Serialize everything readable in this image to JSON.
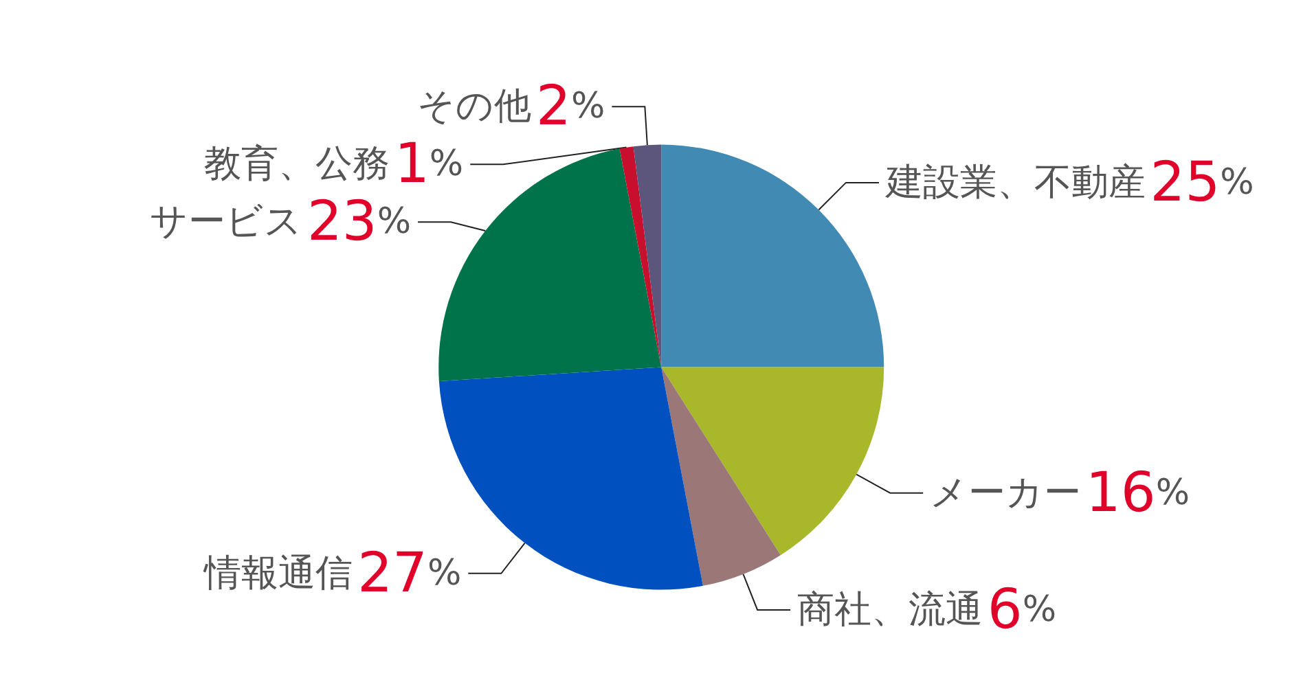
{
  "chart_data": {
    "type": "pie",
    "categories": [
      "建設業、不動産",
      "メーカー",
      "商社、流通",
      "情報通信",
      "サービス",
      "教育、公務",
      "その他"
    ],
    "values": [
      25,
      16,
      6,
      27,
      23,
      1,
      2
    ],
    "value_labels": [
      "25%",
      "16%",
      "6%",
      "27%",
      "23%",
      "1%",
      "2%"
    ],
    "colors": [
      "#418ab4",
      "#a8b82a",
      "#9c7778",
      "#0050c0",
      "#00734a",
      "#c8102e",
      "#5c557c"
    ],
    "legend": false
  }
}
